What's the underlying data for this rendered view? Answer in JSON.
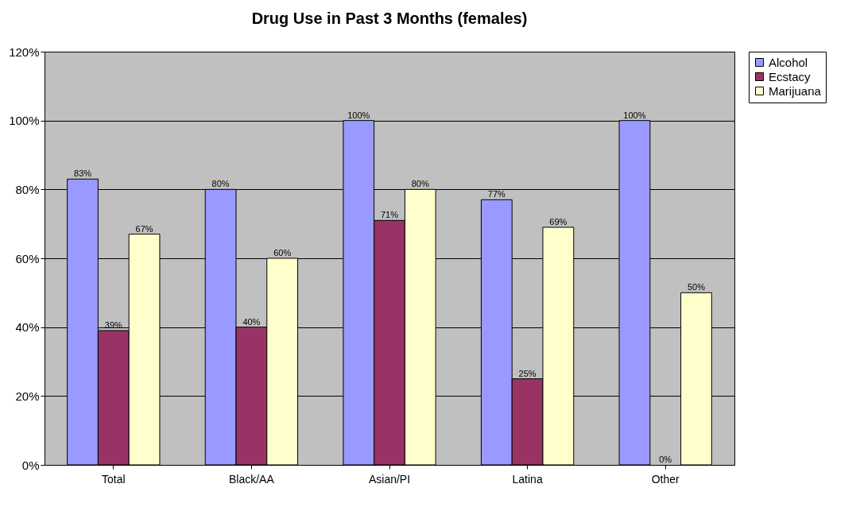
{
  "chart_data": {
    "type": "bar",
    "title": "Drug Use in Past 3 Months (females)",
    "categories": [
      "Total",
      "Black/AA",
      "Asian/PI",
      "Latina",
      "Other"
    ],
    "series": [
      {
        "name": "Alcohol",
        "color": "#9999ff",
        "values": [
          83,
          80,
          100,
          77,
          100
        ],
        "value_labels": [
          "83%",
          "80%",
          "100%",
          "77%",
          "100%"
        ]
      },
      {
        "name": "Ecstacy",
        "color": "#993366",
        "values": [
          39,
          40,
          71,
          25,
          0
        ],
        "value_labels": [
          "39%",
          "40%",
          "71%",
          "25%",
          "0%"
        ]
      },
      {
        "name": "Marijuana",
        "color": "#ffffcc",
        "values": [
          67,
          60,
          80,
          69,
          50
        ],
        "value_labels": [
          "67%",
          "60%",
          "80%",
          "69%",
          "50%"
        ]
      }
    ],
    "ylim": [
      0,
      120
    ],
    "yticks": [
      {
        "value": 0,
        "label": "0%"
      },
      {
        "value": 20,
        "label": "20%"
      },
      {
        "value": 40,
        "label": "40%"
      },
      {
        "value": 60,
        "label": "60%"
      },
      {
        "value": 80,
        "label": "80%"
      },
      {
        "value": 100,
        "label": "100%"
      },
      {
        "value": 120,
        "label": "120%"
      }
    ],
    "grid": "y",
    "legend": "right"
  }
}
